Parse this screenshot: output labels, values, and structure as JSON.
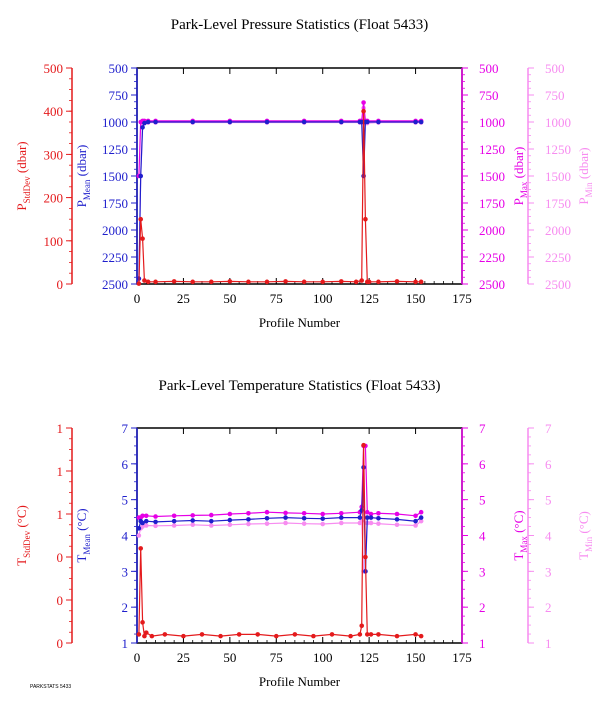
{
  "colors": {
    "stddev": "#e41a1c",
    "mean": "#1f1fcc",
    "max": "#e600e6",
    "min": "#f78cf0",
    "axis": "#000000"
  },
  "footer": "PARKSTATS 5433",
  "chart_data": [
    {
      "type": "line",
      "title": "Park-Level Pressure Statistics (Float 5433)",
      "xlabel": "Profile Number",
      "xlim": [
        0,
        175
      ],
      "xticks": [
        "0",
        "25",
        "50",
        "75",
        "100",
        "125",
        "150",
        "175"
      ],
      "axes": [
        {
          "id": "stddev",
          "label_main": "P",
          "label_sub": "StdDev",
          "unit": "(dbar)",
          "ticks": [
            "500",
            "400",
            "300",
            "200",
            "100",
            "0"
          ],
          "lim": [
            0,
            500
          ]
        },
        {
          "id": "mean",
          "label_main": "P",
          "label_sub": "Mean",
          "unit": "(dbar)",
          "ticks": [
            "500",
            "750",
            "1000",
            "1250",
            "1500",
            "1750",
            "2000",
            "2250",
            "2500"
          ],
          "lim": [
            2500,
            500
          ],
          "inverted": true
        },
        {
          "id": "max",
          "label_main": "P",
          "label_sub": "Max",
          "unit": "(dbar)",
          "ticks": [
            "500",
            "750",
            "1000",
            "1250",
            "1500",
            "1750",
            "2000",
            "2250",
            "2500"
          ],
          "lim": [
            2500,
            500
          ],
          "inverted": true
        },
        {
          "id": "min",
          "label_main": "P",
          "label_sub": "Min",
          "unit": "(dbar)",
          "ticks": [
            "500",
            "750",
            "1000",
            "1250",
            "1500",
            "1750",
            "2000",
            "2250",
            "2500"
          ],
          "lim": [
            2500,
            500
          ],
          "inverted": true
        }
      ],
      "series": {
        "stddev": {
          "x": [
            1,
            2,
            3,
            4,
            6,
            10,
            20,
            30,
            40,
            50,
            60,
            70,
            80,
            90,
            100,
            110,
            118,
            121,
            122,
            123,
            124,
            125,
            130,
            140,
            150,
            153
          ],
          "y": [
            1,
            150,
            105,
            8,
            5,
            5,
            6,
            5,
            5,
            6,
            5,
            5,
            6,
            5,
            5,
            6,
            5,
            8,
            400,
            150,
            5,
            5,
            5,
            6,
            5,
            5
          ]
        },
        "mean": {
          "x": [
            1,
            2,
            3,
            4,
            6,
            10,
            30,
            50,
            70,
            90,
            110,
            120,
            121,
            122,
            123,
            124,
            130,
            150,
            153
          ],
          "y": [
            2450,
            1500,
            1050,
            1010,
            1000,
            1000,
            1000,
            1000,
            1000,
            1000,
            1000,
            1000,
            1000,
            1500,
            1000,
            1000,
            1000,
            1000,
            1000
          ]
        },
        "max": {
          "x": [
            1,
            2,
            3,
            4,
            6,
            10,
            30,
            50,
            70,
            90,
            110,
            120,
            121,
            122,
            123,
            124,
            130,
            150,
            153
          ],
          "y": [
            1500,
            1000,
            990,
            990,
            990,
            990,
            990,
            990,
            990,
            990,
            990,
            990,
            990,
            820,
            990,
            990,
            990,
            990,
            990
          ]
        },
        "min": {
          "x": [
            1,
            2,
            3,
            4,
            6,
            10,
            30,
            50,
            70,
            90,
            110,
            120,
            121,
            122,
            123,
            124,
            130,
            150,
            153
          ],
          "y": [
            2450,
            1500,
            1010,
            1010,
            1005,
            1005,
            1005,
            1005,
            1005,
            1005,
            1005,
            1005,
            1005,
            870,
            1010,
            1010,
            1005,
            1005,
            1005
          ]
        }
      }
    },
    {
      "type": "line",
      "title": "Park-Level Temperature Statistics (Float 5433)",
      "xlabel": "Profile Number",
      "xlim": [
        0,
        175
      ],
      "xticks": [
        "0",
        "25",
        "50",
        "75",
        "100",
        "125",
        "150",
        "175"
      ],
      "axes": [
        {
          "id": "stddev",
          "label_main": "T",
          "label_sub": "StdDev",
          "unit": "(°C)",
          "ticks": [
            "1",
            "1",
            "1",
            "0",
            "0",
            "0"
          ],
          "lim": [
            0,
            1.25
          ]
        },
        {
          "id": "mean",
          "label_main": "T",
          "label_sub": "Mean",
          "unit": "(°C)",
          "ticks": [
            "7",
            "6",
            "5",
            "4",
            "3",
            "2",
            "1"
          ],
          "lim": [
            1,
            7
          ]
        },
        {
          "id": "max",
          "label_main": "T",
          "label_sub": "Max",
          "unit": "(°C)",
          "ticks": [
            "7",
            "6",
            "5",
            "4",
            "3",
            "2",
            "1"
          ],
          "lim": [
            1,
            7
          ]
        },
        {
          "id": "min",
          "label_main": "T",
          "label_sub": "Min",
          "unit": "(°C)",
          "ticks": [
            "7",
            "6",
            "5",
            "4",
            "3",
            "2",
            "1"
          ],
          "lim": [
            1,
            7
          ]
        }
      ],
      "series": {
        "stddev": {
          "x": [
            1,
            2,
            3,
            4,
            5,
            8,
            15,
            25,
            35,
            45,
            55,
            65,
            75,
            85,
            95,
            105,
            115,
            120,
            121,
            122,
            123,
            124,
            126,
            130,
            140,
            150,
            153
          ],
          "y": [
            0.05,
            0.55,
            0.12,
            0.04,
            0.06,
            0.04,
            0.05,
            0.04,
            0.05,
            0.04,
            0.05,
            0.05,
            0.04,
            0.05,
            0.04,
            0.05,
            0.04,
            0.05,
            0.1,
            1.15,
            0.5,
            0.05,
            0.05,
            0.05,
            0.04,
            0.05,
            0.04
          ]
        },
        "mean": {
          "x": [
            1,
            2,
            3,
            5,
            10,
            20,
            30,
            40,
            50,
            60,
            70,
            80,
            90,
            100,
            110,
            120,
            121,
            122,
            123,
            124,
            126,
            130,
            140,
            150,
            153
          ],
          "y": [
            4.2,
            4.4,
            4.35,
            4.4,
            4.38,
            4.4,
            4.42,
            4.4,
            4.43,
            4.45,
            4.48,
            4.5,
            4.48,
            4.47,
            4.5,
            4.5,
            4.7,
            5.9,
            3.0,
            4.5,
            4.5,
            4.48,
            4.45,
            4.4,
            4.5
          ]
        },
        "max": {
          "x": [
            1,
            2,
            3,
            5,
            10,
            20,
            30,
            40,
            50,
            60,
            70,
            80,
            90,
            100,
            110,
            120,
            121,
            122,
            123,
            124,
            126,
            130,
            140,
            150,
            153
          ],
          "y": [
            4.5,
            4.5,
            4.55,
            4.55,
            4.53,
            4.55,
            4.56,
            4.57,
            4.6,
            4.62,
            4.65,
            4.63,
            4.62,
            4.6,
            4.62,
            4.65,
            4.8,
            6.5,
            6.5,
            4.65,
            4.6,
            4.62,
            4.6,
            4.55,
            4.65
          ]
        },
        "min": {
          "x": [
            1,
            2,
            3,
            5,
            10,
            20,
            30,
            40,
            50,
            60,
            70,
            80,
            90,
            100,
            110,
            120,
            121,
            122,
            123,
            124,
            126,
            130,
            140,
            150,
            153
          ],
          "y": [
            4.0,
            4.2,
            4.25,
            4.28,
            4.27,
            4.28,
            4.3,
            4.28,
            4.3,
            4.32,
            4.33,
            4.35,
            4.33,
            4.32,
            4.35,
            4.35,
            4.4,
            3.0,
            3.0,
            4.35,
            4.35,
            4.33,
            4.3,
            4.28,
            4.4
          ]
        }
      }
    }
  ]
}
